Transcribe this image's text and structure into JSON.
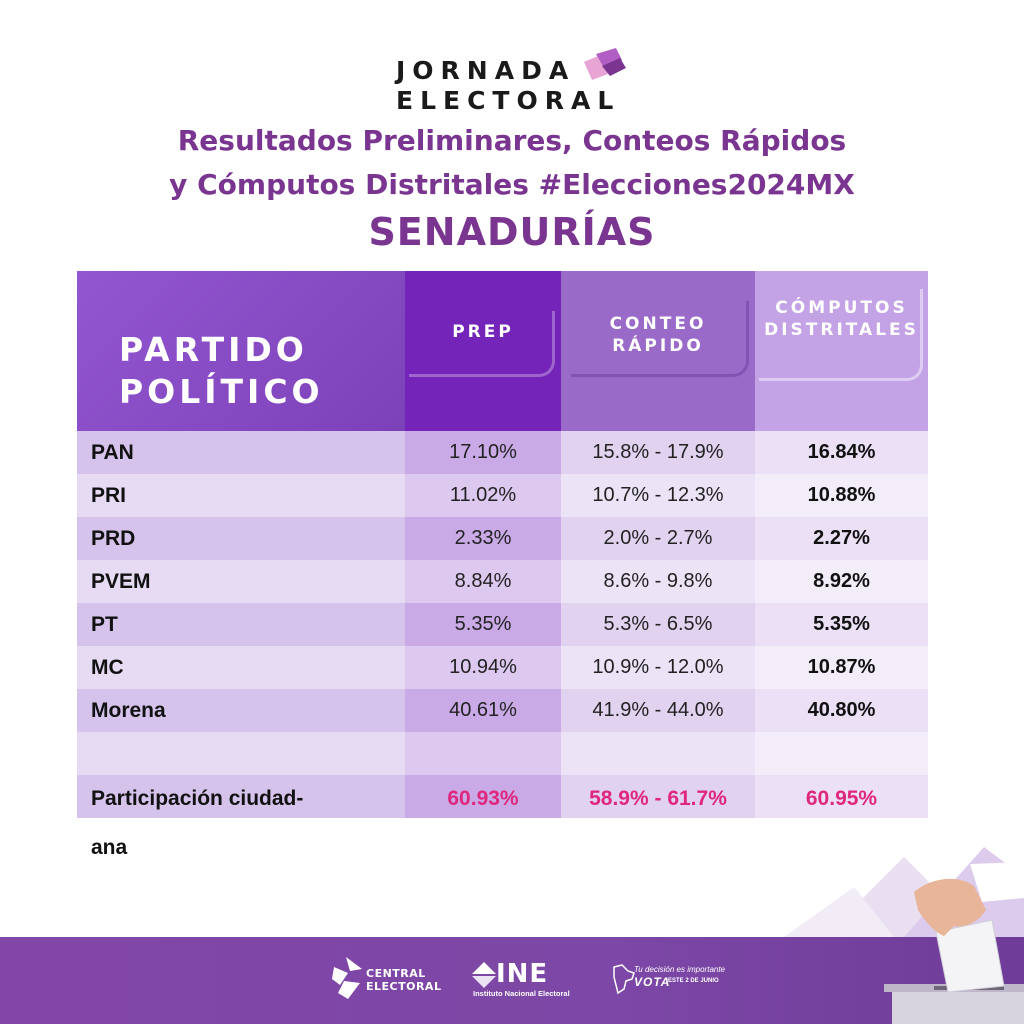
{
  "header": {
    "logo_line1": "JORNADA",
    "logo_line2": "ELECTORAL",
    "title_line1": "Resultados Preliminares, Conteos Rápidos",
    "title_line2": "y Cómputos Distritales #Elecciones2024MX",
    "section": "SENADURÍAS"
  },
  "table": {
    "col_party_line1": "PARTIDO",
    "col_party_line2": "POLÍTICO",
    "col_prep": "PREP",
    "col_conteo_line1": "CONTEO",
    "col_conteo_line2": "RÁPIDO",
    "col_computos_line1": "CÓMPUTOS",
    "col_computos_line2": "DISTRITALES",
    "rows": [
      {
        "party": "PAN",
        "prep": "17.10%",
        "conteo": "15.8% - 17.9%",
        "computos": "16.84%"
      },
      {
        "party": "PRI",
        "prep": "11.02%",
        "conteo": "10.7% - 12.3%",
        "computos": "10.88%"
      },
      {
        "party": "PRD",
        "prep": "2.33%",
        "conteo": "2.0% - 2.7%",
        "computos": "2.27%"
      },
      {
        "party": "PVEM",
        "prep": "8.84%",
        "conteo": "8.6% - 9.8%",
        "computos": "8.92%"
      },
      {
        "party": "PT",
        "prep": "5.35%",
        "conteo": "5.3% - 6.5%",
        "computos": "5.35%"
      },
      {
        "party": "MC",
        "prep": "10.94%",
        "conteo": "10.9% - 12.0%",
        "computos": "10.87%"
      },
      {
        "party": "Morena",
        "prep": "40.61%",
        "conteo": "41.9% - 44.0%",
        "computos": "40.80%"
      }
    ],
    "participation": {
      "label_line1": "Participación ciudad-",
      "label_line2": "ana",
      "prep": "60.93%",
      "conteo": "58.9% - 61.7%",
      "computos": "60.95%"
    }
  },
  "footer": {
    "central_line1": "CENTRAL",
    "central_line2": "ELECTORAL",
    "ine_big": "INE",
    "ine_small": "Instituto Nacional Electoral",
    "vota_line1": "Tu decisión es importante",
    "vota_line2": "VOTA",
    "vota_line3": "ESTE 2 DE JUNIO"
  },
  "colors": {
    "title_purple": "#7a3591",
    "highlight_pink": "#e0277e",
    "footer_purple": "#8246a8"
  }
}
